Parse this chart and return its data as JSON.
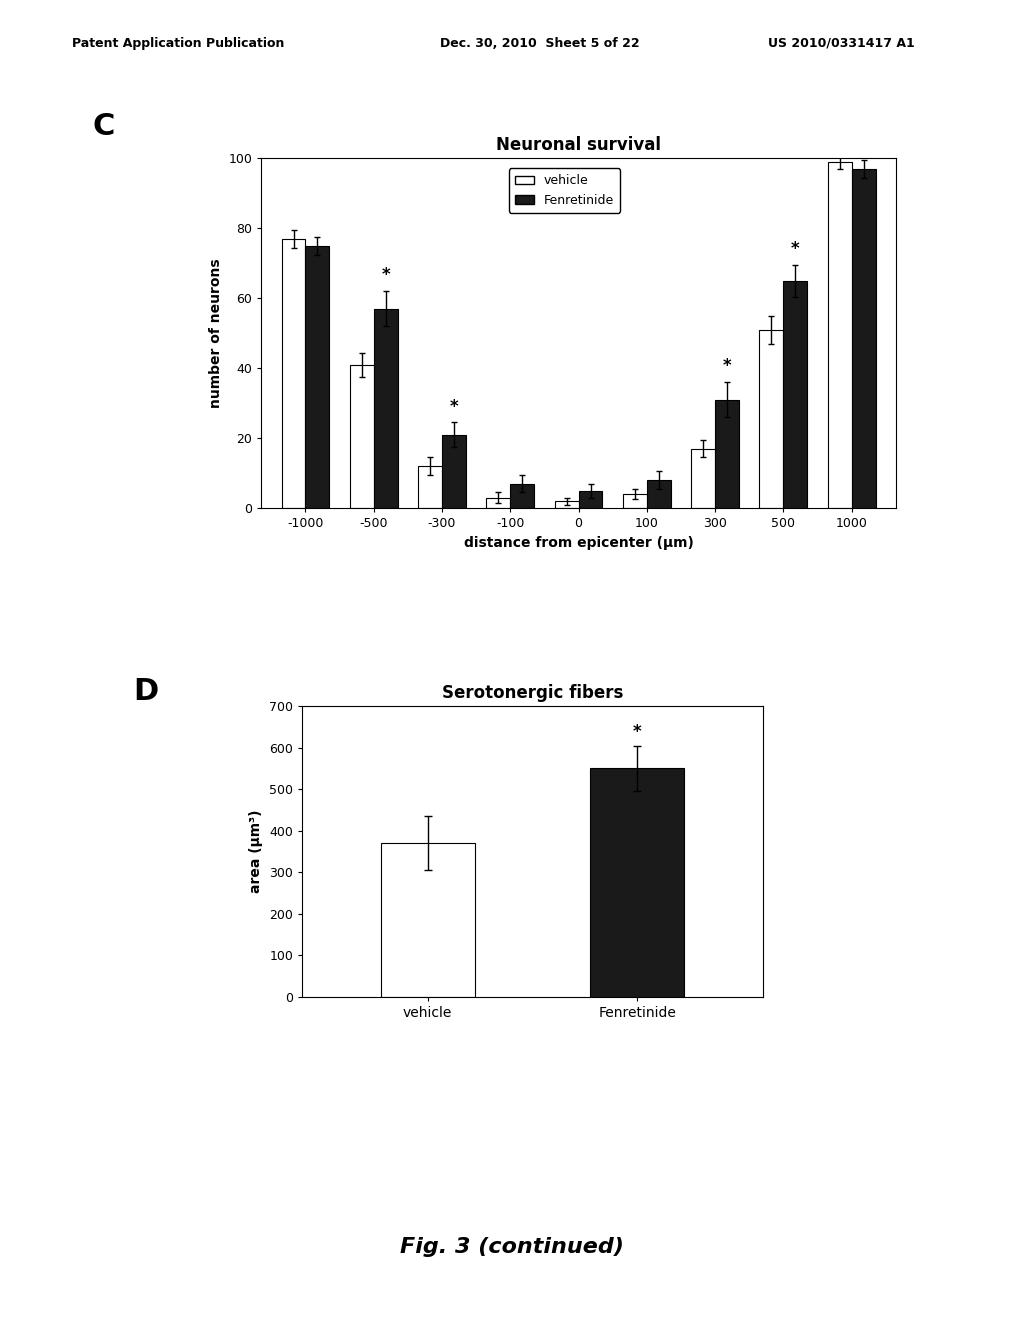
{
  "panel_C": {
    "title": "Neuronal survival",
    "xlabel": "distance from epicenter (μm)",
    "ylabel": "number of neurons",
    "x_positions": [
      -1000,
      -500,
      -300,
      -100,
      0,
      100,
      300,
      500,
      1000
    ],
    "x_labels": [
      "-1000",
      "-500",
      "-300",
      "-100",
      "0",
      "100",
      "300",
      "500",
      "1000"
    ],
    "vehicle_values": [
      77,
      41,
      12,
      3,
      2,
      4,
      17,
      51,
      99
    ],
    "vehicle_errors": [
      2.5,
      3.5,
      2.5,
      1.5,
      1.0,
      1.5,
      2.5,
      4.0,
      2.0
    ],
    "fenretinide_values": [
      75,
      57,
      21,
      7,
      5,
      8,
      31,
      65,
      97
    ],
    "fenretinide_errors": [
      2.5,
      5.0,
      3.5,
      2.5,
      2.0,
      2.5,
      5.0,
      4.5,
      2.5
    ],
    "significant_fenretinide": [
      false,
      true,
      true,
      false,
      false,
      false,
      true,
      true,
      false
    ],
    "ylim": [
      0,
      100
    ],
    "yticks": [
      0,
      20,
      40,
      60,
      80,
      100
    ],
    "bar_width": 0.35,
    "vehicle_color": "#ffffff",
    "fenretinide_color": "#1a1a1a",
    "bar_edge_color": "#000000"
  },
  "panel_D": {
    "title": "Serotonergic fibers",
    "xlabel": "",
    "ylabel": "area (μm³)",
    "categories": [
      "vehicle",
      "Fenretinide"
    ],
    "values": [
      370,
      550
    ],
    "errors": [
      65,
      55
    ],
    "significant": [
      false,
      true
    ],
    "ylim": [
      0,
      700
    ],
    "yticks": [
      0,
      100,
      200,
      300,
      400,
      500,
      600,
      700
    ],
    "vehicle_color": "#ffffff",
    "fenretinide_color": "#1a1a1a",
    "bar_edge_color": "#000000",
    "bar_width": 0.45
  },
  "background_color": "#ffffff",
  "text_color": "#000000",
  "header_left": "Patent Application Publication",
  "header_mid": "Dec. 30, 2010  Sheet 5 of 22",
  "header_right": "US 2010/0331417 A1",
  "footer_text": "Fig. 3 (continued)"
}
